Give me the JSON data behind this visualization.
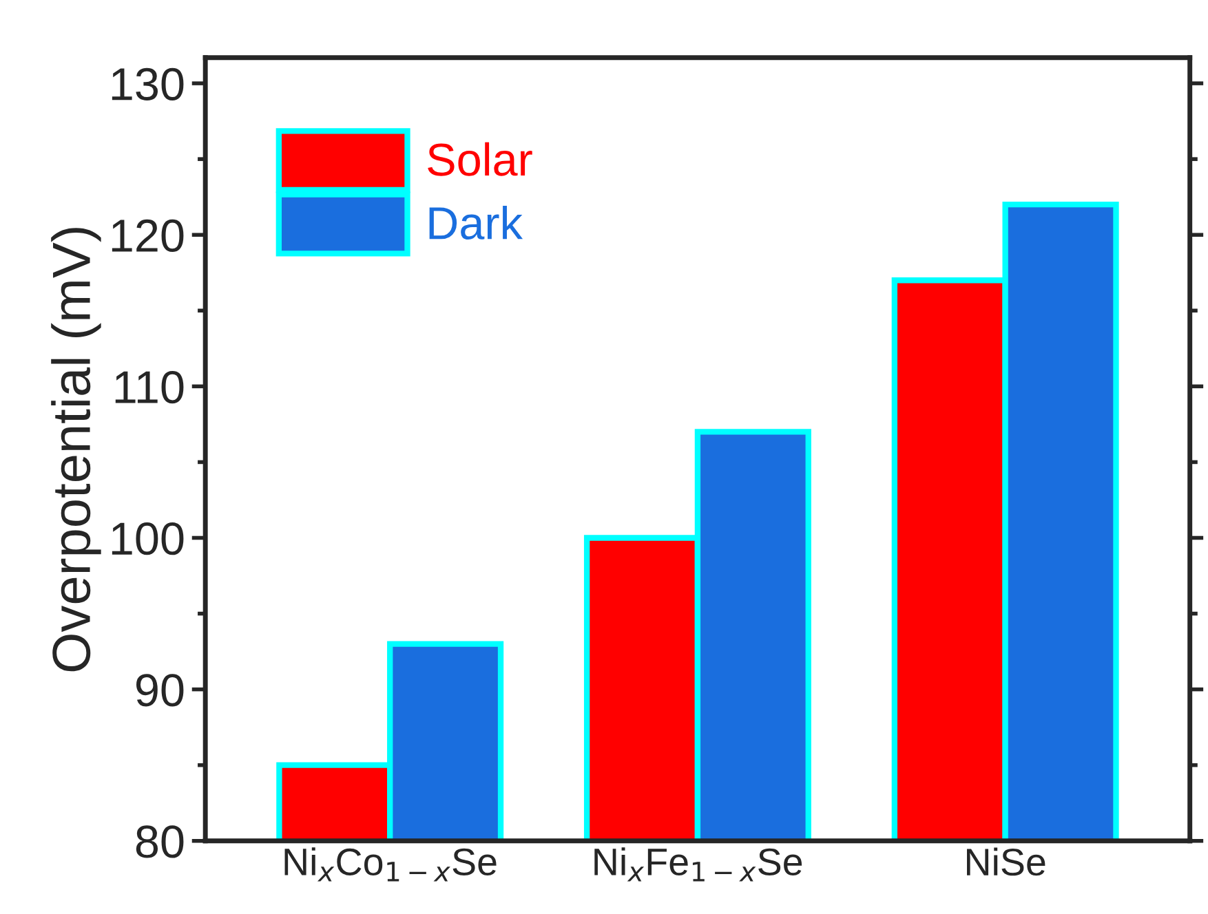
{
  "chart_data": {
    "type": "bar",
    "ylabel": "Overpotential (mV)",
    "categories": [
      "Ni$_{x}$Co$_{1−x}$Se",
      "Ni$_{x}$Fe$_{1−x}$Se",
      "NiSe"
    ],
    "series": [
      {
        "name": "Solar",
        "color": "#ff0000",
        "values": [
          85,
          100,
          117
        ]
      },
      {
        "name": "Dark",
        "color": "#1a6ede",
        "values": [
          93,
          107,
          122
        ]
      }
    ],
    "ylim": [
      80,
      131.7
    ],
    "yticks": [
      80,
      90,
      100,
      110,
      120,
      130
    ],
    "grid": false,
    "legend": "top left"
  }
}
